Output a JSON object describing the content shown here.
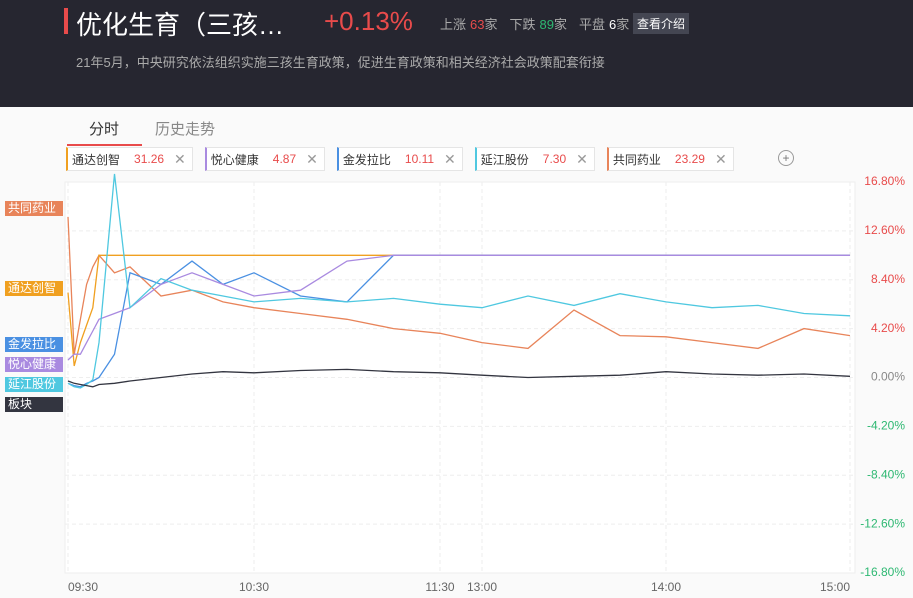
{
  "header": {
    "title": "优化生育（三孩…",
    "change": "+0.13%",
    "stats": [
      {
        "label": "上涨",
        "count": "63",
        "unit": "家"
      },
      {
        "label": "下跌",
        "count": "89",
        "unit": "家"
      },
      {
        "label": "平盘",
        "count": "6",
        "unit": "家"
      }
    ],
    "button": "查看介绍",
    "description": "21年5月，中央研究依法组织实施三孩生育政策，促进生育政策和相关经济社会政策配套衔接"
  },
  "tabs": [
    "分时",
    "历史走势"
  ],
  "chips": [
    {
      "name": "通达创智",
      "price": "31.26",
      "color": "#f0a020"
    },
    {
      "name": "悦心健康",
      "price": "4.87",
      "color": "#a98ae0"
    },
    {
      "name": "金发拉比",
      "price": "10.11",
      "color": "#4a90e2"
    },
    {
      "name": "延江股份",
      "price": "7.30",
      "color": "#4fc8e0"
    },
    {
      "name": "共同药业",
      "price": "23.29",
      "color": "#e8845a"
    }
  ],
  "chart_data": {
    "type": "line",
    "x": [
      570,
      572,
      574,
      576,
      578,
      580,
      585,
      590,
      600,
      610,
      620,
      630,
      645,
      660,
      675,
      690,
      780,
      795,
      810,
      825,
      840,
      855,
      870,
      885,
      900
    ],
    "xlim": [
      570,
      900
    ],
    "xticks": [
      {
        "value": 570,
        "label": "09:30"
      },
      {
        "value": 630,
        "label": "10:30"
      },
      {
        "value": 690,
        "label": "11:30"
      },
      {
        "value": 780,
        "label": "13:00"
      },
      {
        "value": 840,
        "label": "14:00"
      },
      {
        "value": 900,
        "label": "15:00"
      }
    ],
    "ylim": [
      -16.8,
      16.8
    ],
    "yticks": [
      {
        "value": 16.8,
        "label": "16.80%"
      },
      {
        "value": 12.6,
        "label": "12.60%"
      },
      {
        "value": 8.4,
        "label": "8.40%"
      },
      {
        "value": 4.2,
        "label": "4.20%"
      },
      {
        "value": 0,
        "label": "0.00%"
      },
      {
        "value": -4.2,
        "label": "-4.20%"
      },
      {
        "value": -8.4,
        "label": "-8.40%"
      },
      {
        "value": -12.6,
        "label": "-12.60%"
      },
      {
        "value": -16.8,
        "label": "-16.80%"
      }
    ],
    "grid": true,
    "series": [
      {
        "name": "共同药业",
        "color": "#e8845a",
        "values": [
          13.8,
          2,
          5,
          8,
          9.5,
          10.5,
          9,
          9.5,
          7,
          7.5,
          6.5,
          6,
          5.5,
          5,
          4.2,
          3.8,
          3,
          2.5,
          5.8,
          3.6,
          3.5,
          3,
          2.5,
          4.2,
          3.6
        ]
      },
      {
        "name": "通达创智",
        "color": "#f0a020",
        "values": [
          7.3,
          1,
          3,
          4.5,
          6,
          10.5,
          10.5,
          10.5,
          10.5,
          10.5,
          10.5,
          10.5,
          10.5,
          10.5,
          10.5,
          10.5,
          10.5,
          10.5,
          10.5,
          10.5,
          10.5,
          10.5,
          10.5,
          10.5,
          10.5
        ]
      },
      {
        "name": "金发拉比",
        "color": "#4a90e2",
        "values": [
          -0.5,
          -0.7,
          -0.8,
          -0.5,
          -0.3,
          0,
          2,
          9,
          8,
          10,
          8,
          9,
          7,
          6.5,
          10.5,
          10.5,
          10.5,
          10.5,
          10.5,
          10.5,
          10.5,
          10.5,
          10.5,
          10.5,
          10.5
        ]
      },
      {
        "name": "悦心健康",
        "color": "#a98ae0",
        "values": [
          1.5,
          2,
          2,
          3,
          4,
          5,
          5.5,
          6,
          8,
          9,
          8,
          7,
          7.5,
          10,
          10.5,
          10.5,
          10.5,
          10.5,
          10.5,
          10.5,
          10.5,
          10.5,
          10.5,
          10.5,
          10.5
        ]
      },
      {
        "name": "延江股份",
        "color": "#4fc8e0",
        "values": [
          -0.5,
          -0.8,
          -0.9,
          -0.6,
          -0.2,
          3,
          17.5,
          6,
          8.5,
          7.5,
          7,
          6.5,
          6.8,
          6.5,
          6.8,
          6.3,
          6,
          7,
          6.2,
          7.2,
          6.5,
          6,
          6.2,
          5.5,
          5.3
        ]
      },
      {
        "name": "板块",
        "color": "#333540",
        "values": [
          -0.3,
          -0.5,
          -0.6,
          -0.7,
          -0.8,
          -0.6,
          -0.5,
          -0.3,
          0,
          0.3,
          0.5,
          0.4,
          0.6,
          0.7,
          0.5,
          0.4,
          0.2,
          0,
          0.1,
          0.2,
          0.5,
          0.3,
          0.2,
          0.3,
          0.1
        ]
      }
    ]
  }
}
